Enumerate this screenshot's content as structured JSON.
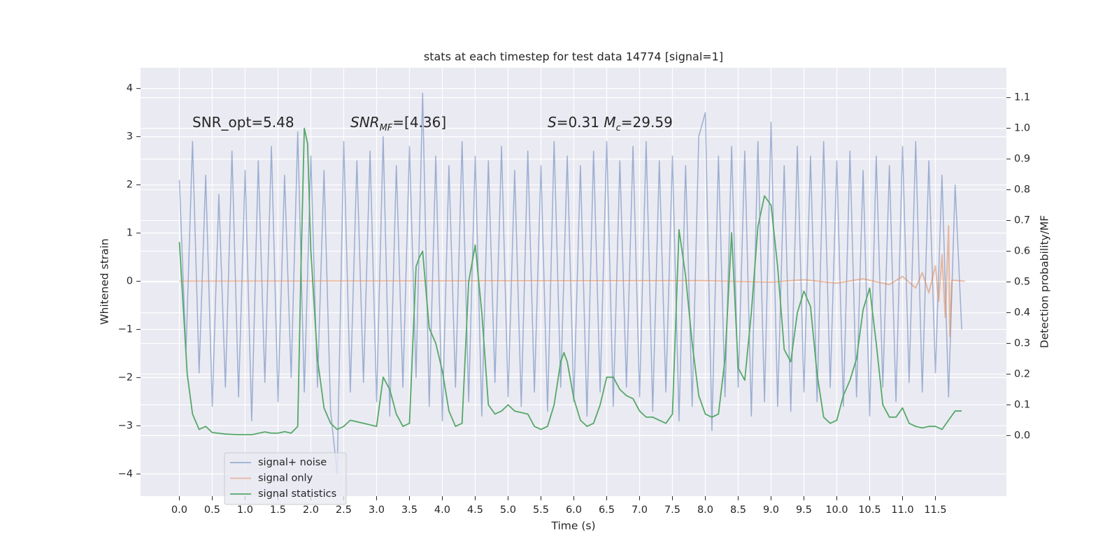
{
  "chart_data": {
    "type": "line",
    "title": "stats at each timestep for test data 14774 [signal=1]",
    "xlabel": "Time (s)",
    "ylabel": "Whitened strain",
    "y2label": "Detection probability/MF",
    "xlim": [
      -0.59,
      12.58
    ],
    "ylim": [
      -4.46,
      4.43
    ],
    "y2lim": [
      -0.197,
      1.197
    ],
    "xticks": [
      {
        "value": 0,
        "label": "0.0"
      },
      0.5,
      {
        "value": 1,
        "label": "1.0"
      },
      1.5,
      {
        "value": 2,
        "label": "2.0"
      },
      2.5,
      {
        "value": 3,
        "label": "3.0"
      },
      3.5,
      {
        "value": 4,
        "label": "4.0"
      },
      4.5,
      {
        "value": 5,
        "label": "5.0"
      },
      5.5,
      {
        "value": 6,
        "label": "6.0"
      },
      6.5,
      {
        "value": 7,
        "label": "7.0"
      },
      7.5,
      {
        "value": 8,
        "label": "8.0"
      },
      8.5,
      {
        "value": 9,
        "label": "9.0"
      },
      9.5,
      {
        "value": 10,
        "label": "10.0"
      },
      10.5,
      {
        "value": 11,
        "label": "11.0"
      },
      11.5
    ],
    "yticks": [
      {
        "value": -4,
        "label": "−4"
      },
      {
        "value": -3,
        "label": "−3"
      },
      {
        "value": -2,
        "label": "−2"
      },
      {
        "value": -1,
        "label": "−1"
      },
      0,
      1,
      2,
      3,
      4
    ],
    "y2ticks": [
      {
        "value": 0,
        "label": "0.0"
      },
      0.1,
      0.2,
      0.3,
      0.4,
      0.5,
      0.6,
      0.7,
      0.8,
      0.9,
      {
        "value": 1,
        "label": "1.0"
      },
      1.1
    ],
    "grid": true,
    "legend": "lower left",
    "annotations": [
      [
        {
          "text": "SNR_opt=5.48",
          "style": "normal"
        }
      ],
      [
        {
          "text": "SNR",
          "style": "italic"
        },
        {
          "text": "MF",
          "style": "sub"
        },
        {
          "text": "=[4.36]",
          "style": "normal"
        }
      ],
      [
        {
          "text": "S",
          "style": "italic"
        },
        {
          "text": "=0.31   ",
          "style": "normal"
        },
        {
          "text": "M",
          "style": "italic"
        },
        {
          "text": "c",
          "style": "sub"
        },
        {
          "text": "=29.59",
          "style": "normal"
        }
      ]
    ],
    "series": [
      {
        "name": "signal+ noise",
        "color": "#4c72b0",
        "alpha": 0.5,
        "width": 1.5,
        "x": [
          0.0,
          0.1,
          0.2,
          0.3,
          0.4,
          0.5,
          0.6,
          0.7,
          0.8,
          0.9,
          1.0,
          1.1,
          1.2,
          1.3,
          1.4,
          1.5,
          1.6,
          1.7,
          1.8,
          1.9,
          2.0,
          2.1,
          2.2,
          2.3,
          2.4,
          2.5,
          2.6,
          2.7,
          2.8,
          2.9,
          3.0,
          3.1,
          3.2,
          3.3,
          3.4,
          3.5,
          3.6,
          3.7,
          3.8,
          3.9,
          4.0,
          4.1,
          4.2,
          4.3,
          4.4,
          4.5,
          4.6,
          4.7,
          4.8,
          4.9,
          5.0,
          5.1,
          5.2,
          5.3,
          5.4,
          5.5,
          5.6,
          5.7,
          5.8,
          5.9,
          6.0,
          6.1,
          6.2,
          6.3,
          6.4,
          6.5,
          6.6,
          6.7,
          6.8,
          6.9,
          7.0,
          7.1,
          7.2,
          7.3,
          7.4,
          7.5,
          7.6,
          7.7,
          7.8,
          7.9,
          8.0,
          8.1,
          8.2,
          8.3,
          8.4,
          8.5,
          8.6,
          8.7,
          8.8,
          8.9,
          9.0,
          9.1,
          9.2,
          9.3,
          9.4,
          9.5,
          9.6,
          9.7,
          9.8,
          9.9,
          10.0,
          10.1,
          10.2,
          10.3,
          10.4,
          10.5,
          10.6,
          10.7,
          10.8,
          10.9,
          11.0,
          11.1,
          11.2,
          11.3,
          11.4,
          11.5,
          11.6,
          11.7,
          11.8,
          11.9
        ],
        "values": [
          2.1,
          -1.5,
          2.9,
          -1.9,
          2.2,
          -2.6,
          1.8,
          -2.2,
          2.7,
          -2.4,
          2.3,
          -2.9,
          2.5,
          -2.1,
          2.8,
          -2.5,
          2.2,
          -2.0,
          3.1,
          -2.3,
          2.6,
          -2.2,
          2.3,
          -2.7,
          -4.0,
          2.9,
          -2.3,
          2.5,
          -2.1,
          2.7,
          -2.5,
          3.0,
          -2.8,
          2.4,
          -2.2,
          2.8,
          -2.0,
          3.9,
          -2.6,
          2.6,
          -2.9,
          2.4,
          -2.2,
          2.9,
          -2.5,
          2.6,
          -2.8,
          2.5,
          -2.1,
          2.8,
          -2.4,
          2.3,
          -2.6,
          2.7,
          -2.3,
          2.4,
          -2.7,
          2.9,
          -2.2,
          2.6,
          -2.5,
          2.4,
          -2.8,
          2.7,
          -2.3,
          2.9,
          -2.6,
          2.5,
          -2.2,
          2.8,
          -2.4,
          2.9,
          -2.7,
          2.5,
          -2.3,
          2.6,
          -2.9,
          2.4,
          -2.6,
          3.0,
          3.5,
          -3.1,
          2.6,
          -2.4,
          2.8,
          -2.2,
          2.7,
          -2.8,
          2.9,
          -2.5,
          3.3,
          -2.6,
          2.4,
          -2.7,
          2.8,
          -2.3,
          2.6,
          -2.5,
          2.9,
          -2.2,
          2.5,
          -2.6,
          2.7,
          -2.4,
          2.3,
          -2.8,
          2.6,
          -2.2,
          2.4,
          -2.5,
          2.8,
          -2.1,
          2.9,
          -2.3,
          2.5,
          -1.9,
          2.2,
          -2.4,
          2.0,
          -1.0
        ]
      },
      {
        "name": "signal only",
        "color": "#dd8452",
        "alpha": 0.5,
        "width": 2,
        "x": [
          0,
          8,
          9,
          9.5,
          10,
          10.4,
          10.8,
          11.0,
          11.2,
          11.3,
          11.4,
          11.5,
          11.55,
          11.6,
          11.65,
          11.7,
          11.72,
          11.75,
          11.95
        ],
        "values": [
          0,
          0.01,
          -0.02,
          0.03,
          -0.04,
          0.05,
          -0.07,
          0.1,
          -0.14,
          0.18,
          -0.24,
          0.32,
          -0.42,
          0.55,
          -0.75,
          1.15,
          -1.15,
          0.02,
          0
        ]
      },
      {
        "name": "signal statistics",
        "color": "#55a868",
        "alpha": 1,
        "width": 1.8,
        "axis": "y2",
        "x": [
          0,
          0.05,
          0.12,
          0.2,
          0.3,
          0.4,
          0.5,
          0.7,
          0.9,
          1.1,
          1.3,
          1.4,
          1.5,
          1.6,
          1.7,
          1.8,
          1.85,
          1.9,
          1.95,
          2.0,
          2.1,
          2.2,
          2.3,
          2.4,
          2.5,
          2.6,
          2.8,
          3.0,
          3.1,
          3.2,
          3.3,
          3.4,
          3.5,
          3.6,
          3.65,
          3.7,
          3.8,
          3.9,
          4.0,
          4.1,
          4.2,
          4.3,
          4.4,
          4.5,
          4.6,
          4.7,
          4.8,
          4.9,
          5.0,
          5.1,
          5.2,
          5.3,
          5.4,
          5.5,
          5.6,
          5.7,
          5.8,
          5.85,
          5.9,
          6.0,
          6.1,
          6.2,
          6.3,
          6.4,
          6.5,
          6.6,
          6.7,
          6.8,
          6.9,
          7.0,
          7.1,
          7.2,
          7.3,
          7.4,
          7.5,
          7.6,
          7.7,
          7.8,
          7.9,
          8.0,
          8.1,
          8.2,
          8.3,
          8.4,
          8.5,
          8.6,
          8.7,
          8.8,
          8.9,
          9.0,
          9.1,
          9.2,
          9.3,
          9.4,
          9.5,
          9.6,
          9.7,
          9.8,
          9.9,
          10.0,
          10.1,
          10.2,
          10.3,
          10.4,
          10.5,
          10.6,
          10.7,
          10.8,
          10.9,
          11.0,
          11.1,
          11.2,
          11.3,
          11.4,
          11.5,
          11.6,
          11.7,
          11.8,
          11.9
        ],
        "values": [
          0.63,
          0.45,
          0.2,
          0.07,
          0.02,
          0.03,
          0.01,
          0.005,
          0.003,
          0.003,
          0.012,
          0.008,
          0.008,
          0.013,
          0.008,
          0.03,
          0.55,
          1.0,
          0.95,
          0.6,
          0.25,
          0.09,
          0.04,
          0.02,
          0.03,
          0.05,
          0.04,
          0.03,
          0.19,
          0.15,
          0.07,
          0.03,
          0.04,
          0.55,
          0.58,
          0.6,
          0.35,
          0.3,
          0.21,
          0.08,
          0.03,
          0.04,
          0.5,
          0.62,
          0.4,
          0.1,
          0.07,
          0.08,
          0.1,
          0.08,
          0.075,
          0.07,
          0.03,
          0.02,
          0.03,
          0.1,
          0.24,
          0.27,
          0.24,
          0.12,
          0.05,
          0.03,
          0.04,
          0.1,
          0.19,
          0.19,
          0.15,
          0.13,
          0.12,
          0.08,
          0.06,
          0.06,
          0.05,
          0.04,
          0.07,
          0.67,
          0.52,
          0.3,
          0.13,
          0.07,
          0.06,
          0.07,
          0.25,
          0.66,
          0.22,
          0.18,
          0.4,
          0.68,
          0.78,
          0.75,
          0.55,
          0.28,
          0.24,
          0.4,
          0.47,
          0.42,
          0.2,
          0.06,
          0.04,
          0.05,
          0.13,
          0.18,
          0.25,
          0.41,
          0.48,
          0.3,
          0.1,
          0.06,
          0.06,
          0.09,
          0.04,
          0.03,
          0.025,
          0.03,
          0.03,
          0.02,
          0.05,
          0.08,
          0.08
        ]
      }
    ]
  }
}
